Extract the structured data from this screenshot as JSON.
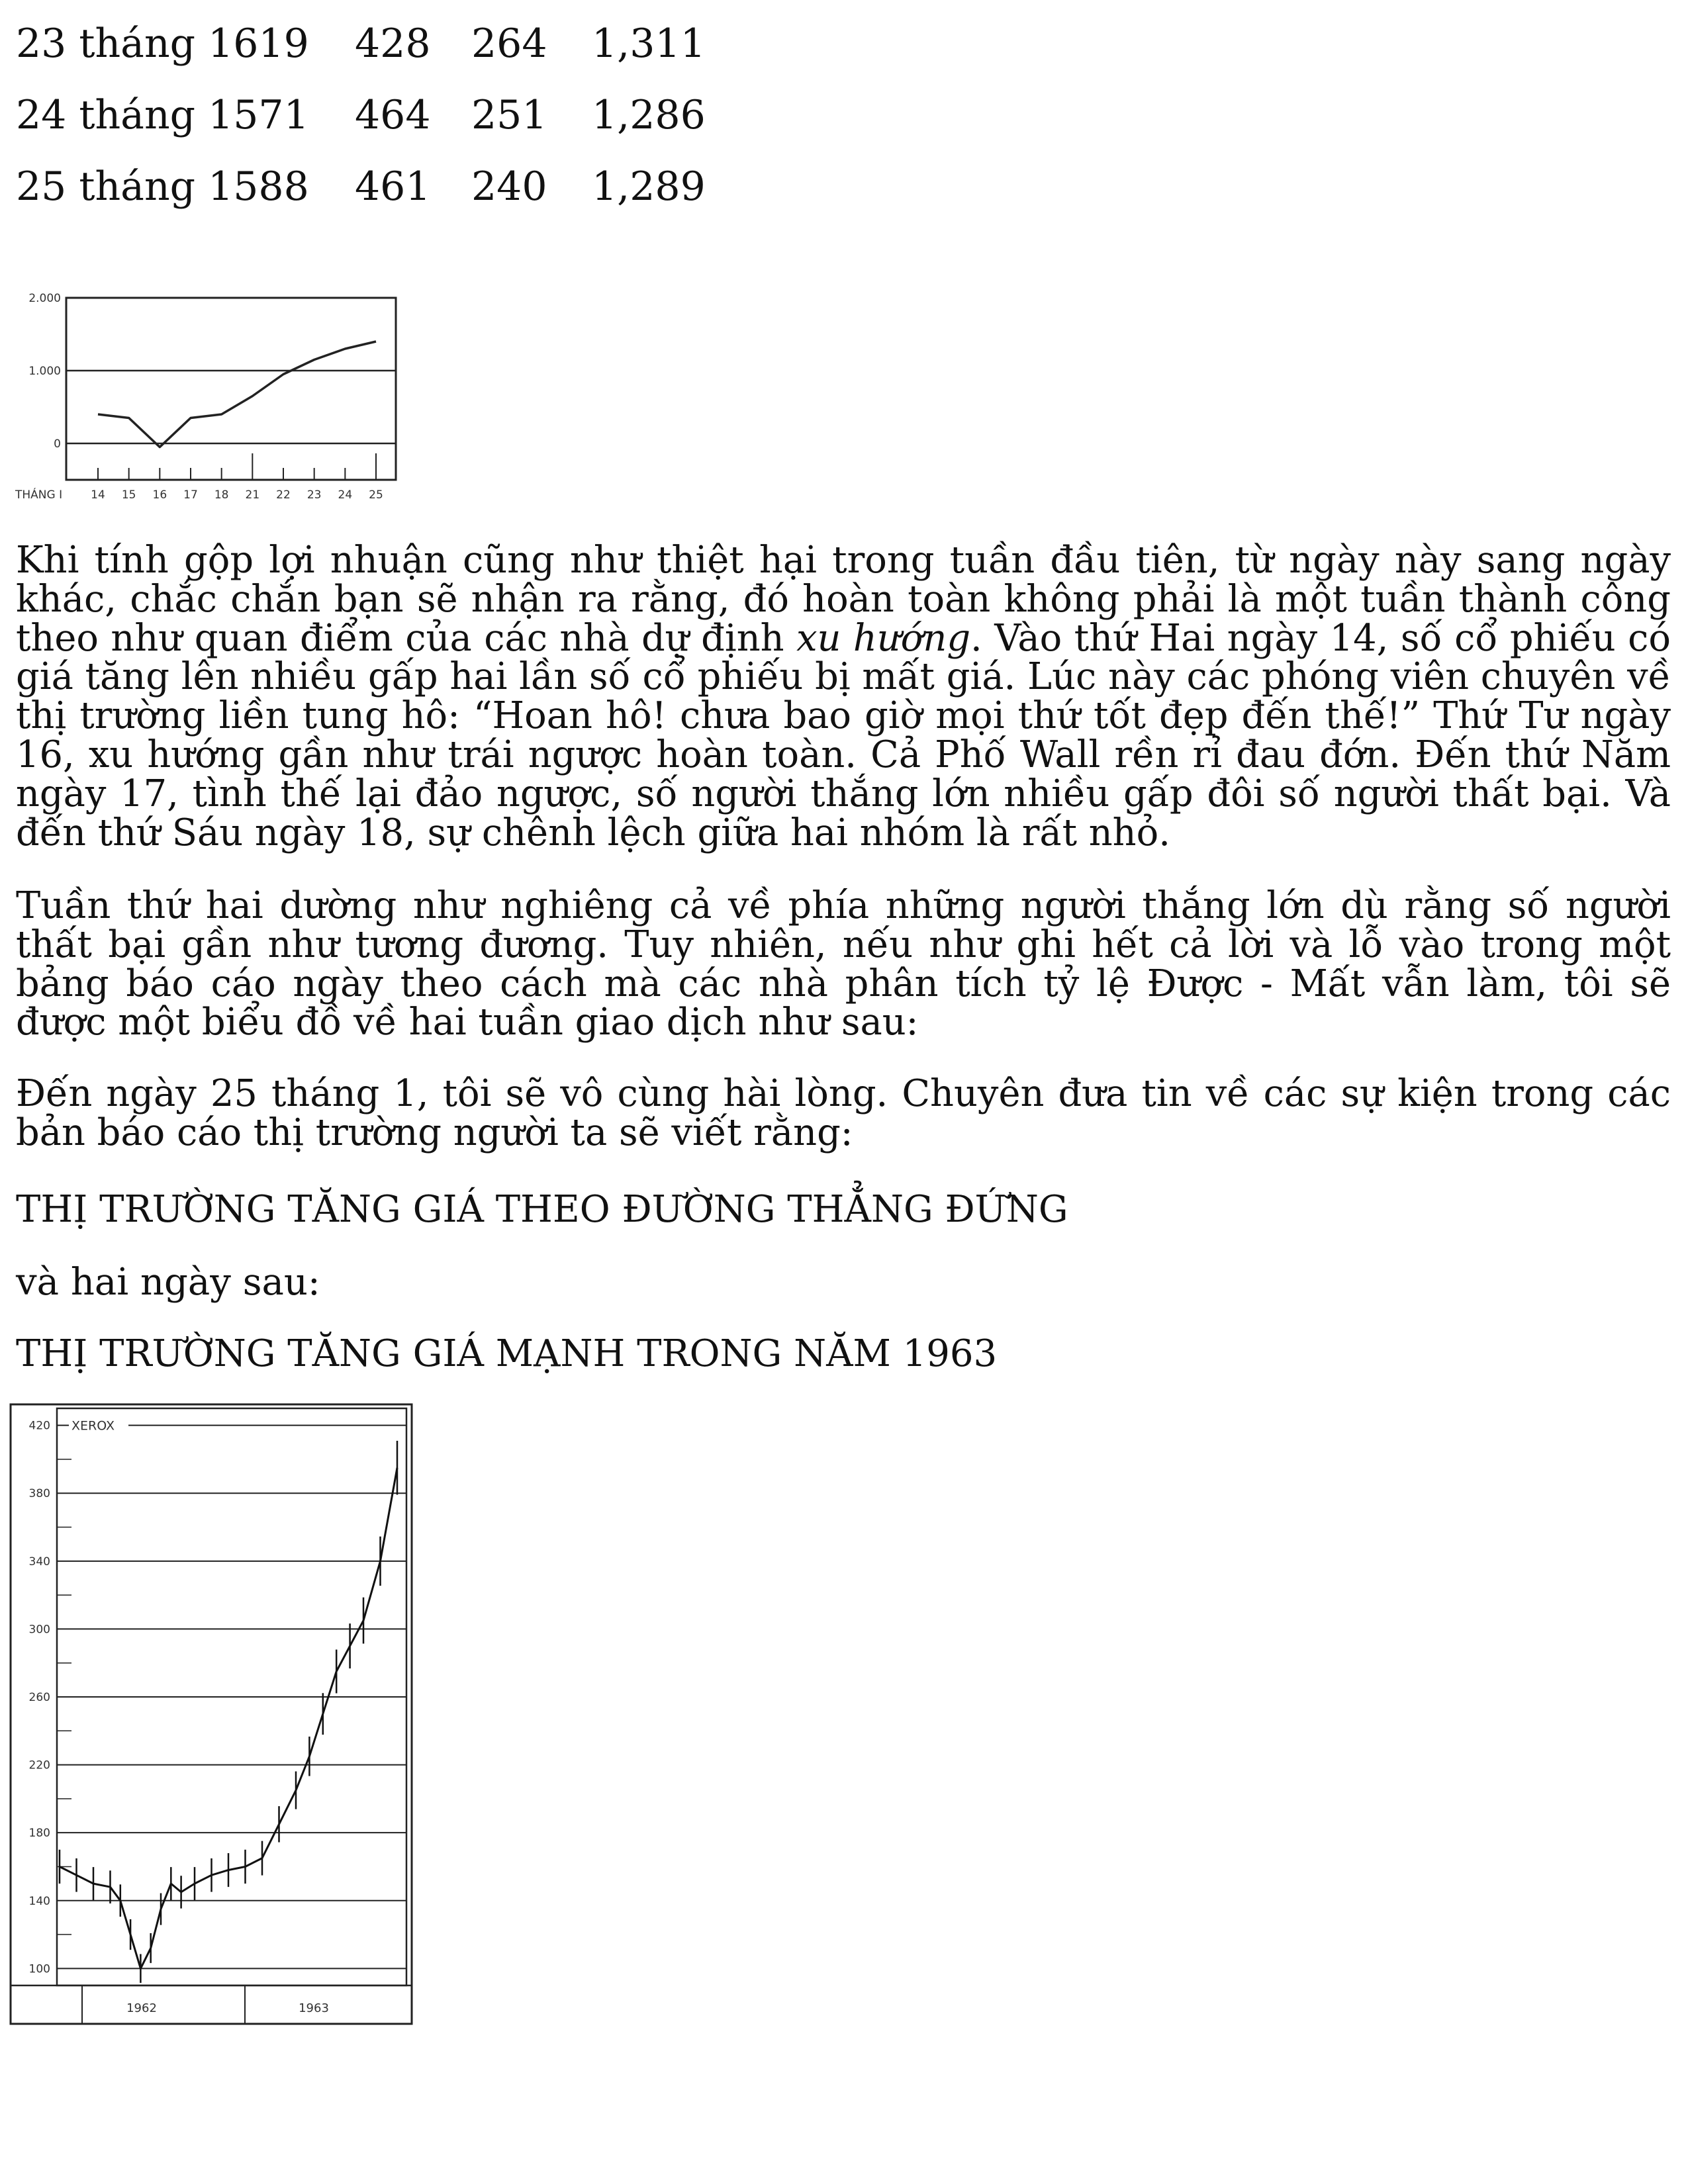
{
  "table": {
    "rows": [
      {
        "date": "23 tháng 1619",
        "a": "428",
        "b": "264",
        "c": "1,311"
      },
      {
        "date": "24 tháng 1571",
        "a": "464",
        "b": "251",
        "c": "1,286"
      },
      {
        "date": "25 tháng 1588",
        "a": "461",
        "b": "240",
        "c": "1,289"
      }
    ]
  },
  "paragraphs": {
    "p1_before": "Khi tính gộp lợi nhuận cũng như thiệt hại trong tuần đầu tiên, từ ngày này sang ngày khác, chắc chắn bạn sẽ nhận ra rằng, đó hoàn toàn không phải là một tuần thành công theo như quan điểm của các nhà dự định ",
    "p1_em": "xu hướng",
    "p1_after": ". Vào thứ Hai ngày 14, số cổ phiếu có giá tăng lên nhiều gấp hai lần số cổ phiếu bị mất giá. Lúc này các phóng viên chuyên về thị trường liền tung hô: “Hoan hô! chưa bao giờ mọi thứ tốt đẹp đến thế!” Thứ Tư ngày 16, xu hướng gần như trái ngược hoàn toàn. Cả Phố Wall rền rỉ đau đớn. Đến thứ Năm ngày 17, tình thế lại đảo ngược, số người thắng lớn nhiều gấp đôi số người thất bại. Và đến thứ Sáu ngày 18, sự chênh lệch giữa hai nhóm là rất nhỏ.",
    "p2": "Tuần thứ hai dường như nghiêng cả về phía những người thắng lớn dù rằng số người thất bại gần như tương đương. Tuy nhiên, nếu như ghi hết cả lời và lỗ vào trong một bảng báo cáo ngày theo cách mà các nhà phân tích tỷ lệ Được - Mất vẫn làm, tôi sẽ được một biểu đồ về hai tuần giao dịch như sau:",
    "p3": "Đến ngày 25 tháng 1, tôi sẽ vô cùng hài lòng. Chuyên đưa tin về các sự kiện trong các bản báo cáo thị trường người ta sẽ viết rằng:",
    "headline1": "THỊ TRƯỜNG TĂNG GIÁ THEO ĐƯỜNG THẲNG ĐỨNG",
    "p4": "và hai ngày sau:",
    "headline2": "THỊ TRƯỜNG TĂNG GIÁ MẠNH TRONG NĂM 1963"
  },
  "chart_data": [
    {
      "type": "line",
      "title": "",
      "xlabel": "THÁNG I",
      "ylabel": "",
      "x": [
        "14",
        "15",
        "16",
        "17",
        "18",
        "21",
        "22",
        "23",
        "24",
        "25"
      ],
      "y_ticks": [
        "2.000",
        "1.000",
        "0"
      ],
      "ylim": [
        -500,
        2000
      ],
      "series": [
        {
          "values": [
            400,
            350,
            -50,
            350,
            400,
            650,
            950,
            1150,
            1300,
            1400
          ]
        }
      ],
      "grid": true
    },
    {
      "type": "line",
      "title": "",
      "xlabel": "",
      "ylabel": "",
      "x_labels": [
        "1962",
        "1963"
      ],
      "y_ticks": [
        "100",
        "140",
        "180",
        "220",
        "260",
        "300",
        "340",
        "380",
        "420"
      ],
      "ylim": [
        90,
        430
      ],
      "series": [
        {
          "name": "XEROX",
          "x": [
            0,
            5,
            10,
            15,
            18,
            21,
            24,
            27,
            30,
            33,
            36,
            40,
            45,
            50,
            55,
            60,
            65,
            70,
            74,
            78,
            82,
            86,
            90,
            95,
            100
          ],
          "values": [
            160,
            155,
            150,
            148,
            140,
            120,
            100,
            112,
            135,
            150,
            145,
            150,
            155,
            158,
            160,
            165,
            185,
            205,
            225,
            250,
            275,
            290,
            305,
            340,
            395
          ]
        }
      ],
      "grid": true
    }
  ]
}
